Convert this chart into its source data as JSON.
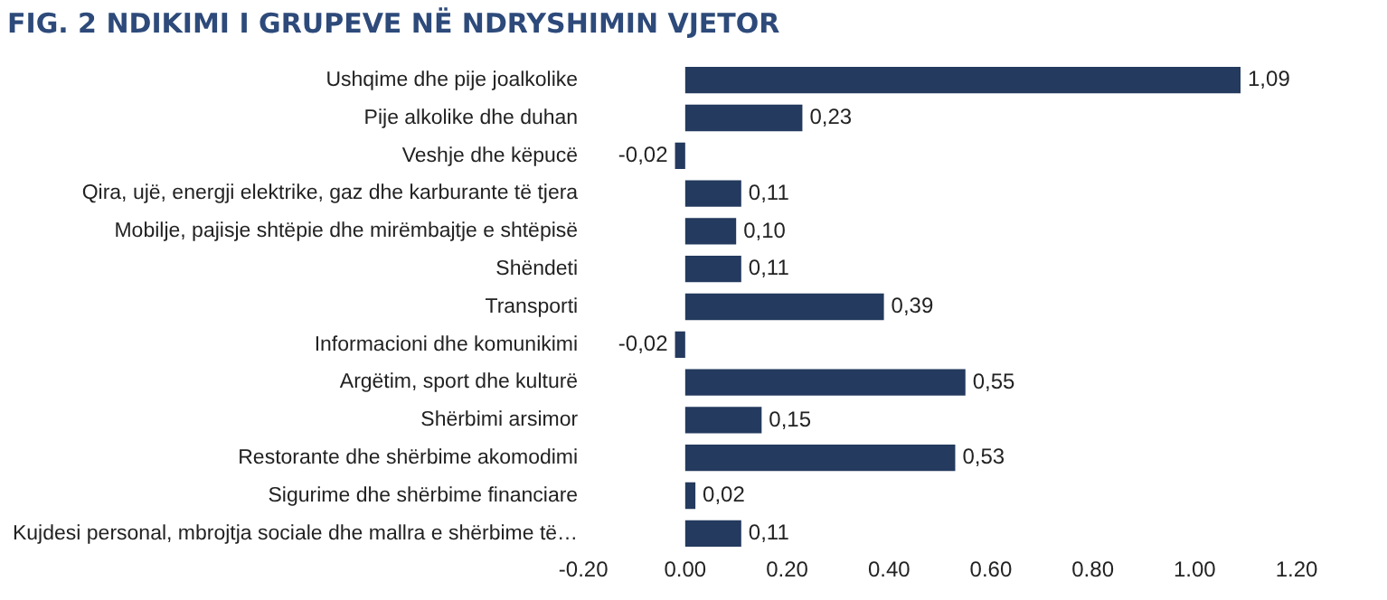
{
  "chart_data": {
    "type": "bar",
    "orientation": "horizontal",
    "title": "FIG. 2 NDIKIMI I GRUPEVE NË NDRYSHIMIN VJETOR",
    "categories": [
      "Ushqime dhe pije joalkolike",
      "Pije alkolike dhe duhan",
      "Veshje dhe këpucë",
      "Qira, ujë, energji elektrike, gaz dhe karburante të tjera",
      "Mobilje, pajisje shtëpie dhe mirëmbajtje e shtëpisë",
      "Shëndeti",
      "Transporti",
      "Informacioni dhe komunikimi",
      "Argëtim, sport dhe kulturë",
      "Shërbimi arsimor",
      "Restorante dhe shërbime akomodimi",
      "Sigurime dhe shërbime financiare",
      "Kujdesi personal, mbrojtja sociale dhe mallra e shërbime të…"
    ],
    "values": [
      1.09,
      0.23,
      -0.02,
      0.11,
      0.1,
      0.11,
      0.39,
      -0.02,
      0.55,
      0.15,
      0.53,
      0.02,
      0.11
    ],
    "value_labels": [
      "1,09",
      "0,23",
      "-0,02",
      "0,11",
      "0,10",
      "0,11",
      "0,39",
      "-0,02",
      "0,55",
      "0,15",
      "0,53",
      "0,02",
      "0,11"
    ],
    "color": "#243a5e",
    "xlim": [
      -0.2,
      1.2
    ],
    "xticks": [
      {
        "value": -0.2,
        "label": "-0.20"
      },
      {
        "value": 0,
        "label": "0.00"
      },
      {
        "value": 0.2,
        "label": "0.20"
      },
      {
        "value": 0.4,
        "label": "0.40"
      },
      {
        "value": 0.6,
        "label": "0.60"
      },
      {
        "value": 0.8,
        "label": "0.80"
      },
      {
        "value": 1,
        "label": "1.00"
      },
      {
        "value": 1.2,
        "label": "1.20"
      }
    ],
    "grid": false,
    "legend": false
  }
}
